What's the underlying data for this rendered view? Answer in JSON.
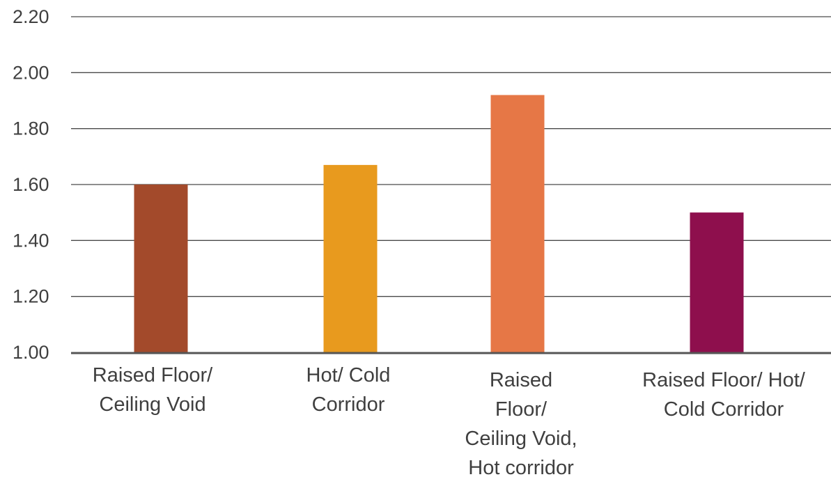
{
  "chart_data": {
    "type": "bar",
    "title": "",
    "xlabel": "",
    "ylabel": "",
    "categories": [
      "Raised Floor/ Ceiling Void",
      "Hot/ Cold Corridor",
      "Raised Floor/ Ceiling Void, Hot corridor",
      "Raised Floor/ Hot/ Cold Corridor"
    ],
    "category_label_lines": [
      [
        "Raised Floor/",
        "Ceiling Void"
      ],
      [
        "Hot/ Cold",
        "Corridor"
      ],
      [
        "Raised",
        "Floor/",
        "Ceiling Void,",
        "Hot corridor"
      ],
      [
        "Raised Floor/ Hot/",
        "Cold Corridor"
      ]
    ],
    "values": [
      1.6,
      1.67,
      1.92,
      1.5
    ],
    "colors": [
      "#a34a2b",
      "#e89a1e",
      "#e67746",
      "#8e0f4d"
    ],
    "ylim": [
      1.0,
      2.2
    ],
    "yticks": [
      "1.00",
      "1.20",
      "1.40",
      "1.60",
      "1.80",
      "2.00",
      "2.20"
    ],
    "grid": true,
    "legend": "none"
  }
}
